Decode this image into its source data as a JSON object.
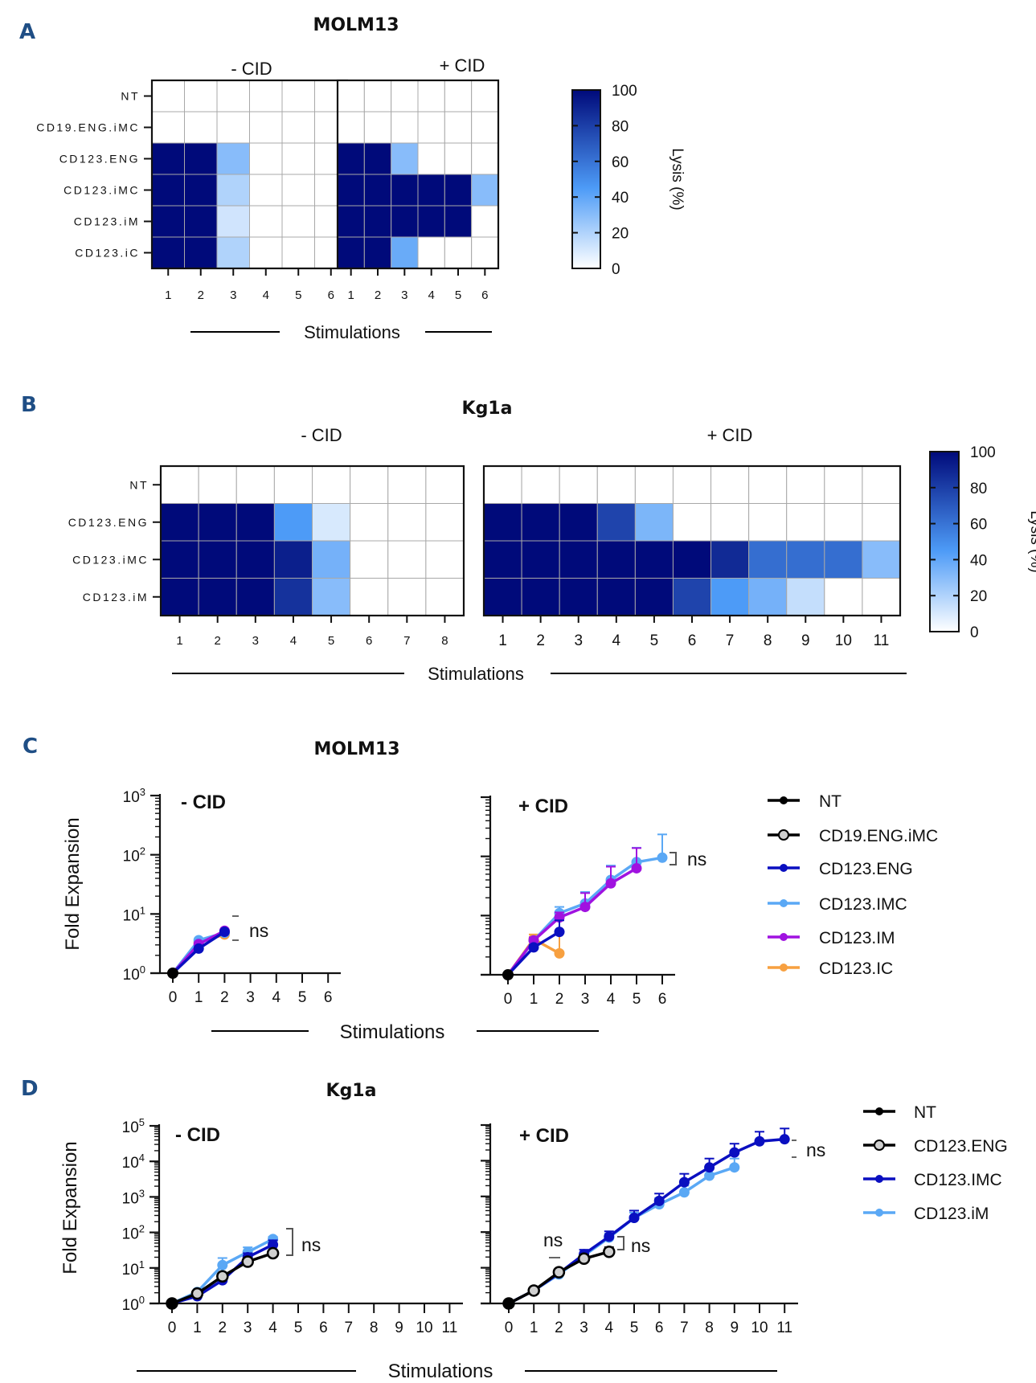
{
  "figure": {
    "panels": {
      "A": {
        "letter": "A",
        "title": "MOLM13"
      },
      "B": {
        "letter": "B",
        "title": "Kg1a"
      },
      "C": {
        "letter": "C",
        "title": "MOLM13"
      },
      "D": {
        "letter": "D",
        "title": "Kg1a"
      }
    },
    "stimulations_label": "Stimulations"
  },
  "chart_data": [
    {
      "id": "A",
      "type": "heatmap",
      "title": "MOLM13",
      "xlabel": "Stimulations",
      "colorbar": {
        "label": "Lysis (%)",
        "range": [
          0,
          100
        ],
        "ticks": [
          "0",
          "20",
          "40",
          "60",
          "80",
          "100"
        ],
        "low_color": "#ffffff",
        "mid_color": "#4d9bf7",
        "high_color": "#000a7a"
      },
      "rows": [
        "NT",
        "CD19.ENG.iMC",
        "CD123.ENG",
        "CD123.iMC",
        "CD123.iM",
        "CD123.iC"
      ],
      "subplots": [
        {
          "label": "- CID",
          "columns": [
            "1",
            "2",
            "3",
            "4",
            "5",
            "6"
          ],
          "values": [
            [
              0,
              0,
              0,
              0,
              0,
              0
            ],
            [
              0,
              0,
              0,
              0,
              0,
              0
            ],
            [
              100,
              100,
              30,
              0,
              0,
              0
            ],
            [
              100,
              100,
              20,
              0,
              0,
              0
            ],
            [
              100,
              100,
              12,
              0,
              0,
              0
            ],
            [
              100,
              100,
              20,
              0,
              0,
              0
            ]
          ]
        },
        {
          "label": "+ CID",
          "columns": [
            "1",
            "2",
            "3",
            "4",
            "5",
            "6"
          ],
          "values": [
            [
              0,
              0,
              0,
              0,
              0,
              0
            ],
            [
              0,
              0,
              0,
              0,
              0,
              0
            ],
            [
              100,
              100,
              30,
              0,
              0,
              0
            ],
            [
              100,
              100,
              100,
              100,
              100,
              30
            ],
            [
              100,
              100,
              100,
              100,
              100,
              0
            ],
            [
              100,
              100,
              38,
              0,
              0,
              0
            ]
          ]
        }
      ]
    },
    {
      "id": "B",
      "type": "heatmap",
      "title": "Kg1a",
      "xlabel": "Stimulations",
      "colorbar": {
        "label": "Lysis (%)",
        "range": [
          0,
          100
        ],
        "ticks": [
          "0",
          "20",
          "40",
          "60",
          "80",
          "100"
        ],
        "low_color": "#ffffff",
        "mid_color": "#4d9bf7",
        "high_color": "#000a7a"
      },
      "rows": [
        "NT",
        "CD123.ENG",
        "CD123.iMC",
        "CD123.iM"
      ],
      "subplots": [
        {
          "label": "- CID",
          "columns": [
            "1",
            "2",
            "3",
            "4",
            "5",
            "6",
            "7",
            "8"
          ],
          "values": [
            [
              0,
              0,
              0,
              0,
              0,
              0,
              0,
              0
            ],
            [
              100,
              100,
              100,
              45,
              10,
              0,
              0,
              0
            ],
            [
              100,
              100,
              100,
              92,
              35,
              0,
              0,
              0
            ],
            [
              100,
              100,
              100,
              85,
              30,
              0,
              0,
              0
            ]
          ]
        },
        {
          "label": "+ CID",
          "columns": [
            "1",
            "2",
            "3",
            "4",
            "5",
            "6",
            "7",
            "8",
            "9",
            "10",
            "11"
          ],
          "values": [
            [
              0,
              0,
              0,
              0,
              0,
              0,
              0,
              0,
              0,
              0,
              0
            ],
            [
              100,
              100,
              100,
              78,
              33,
              0,
              0,
              0,
              0,
              0,
              0
            ],
            [
              100,
              100,
              100,
              100,
              100,
              100,
              88,
              62,
              62,
              62,
              30
            ],
            [
              100,
              100,
              100,
              100,
              100,
              78,
              45,
              35,
              15,
              0,
              0
            ]
          ]
        }
      ]
    },
    {
      "id": "C",
      "type": "line",
      "title": "MOLM13",
      "ylabel": "Fold Expansion",
      "xlabel": "Stimulations",
      "yscale": "log",
      "ylim": [
        1,
        1000
      ],
      "yticks": [
        {
          "base": "10",
          "exp": "0"
        },
        {
          "base": "10",
          "exp": "1"
        },
        {
          "base": "10",
          "exp": "2"
        },
        {
          "base": "10",
          "exp": "3"
        }
      ],
      "legend": {
        "position": "right"
      },
      "series_styles": [
        {
          "name": "NT",
          "color": "#000000",
          "fill": "#000000"
        },
        {
          "name": "CD19.ENG.iMC",
          "color": "#000000",
          "fill": "#d0d0d0"
        },
        {
          "name": "CD123.ENG",
          "color": "#0a0fc0",
          "fill": "#0a0fc0"
        },
        {
          "name": "CD123.IMC",
          "color": "#5aa8f5",
          "fill": "#5aa8f5"
        },
        {
          "name": "CD123.IM",
          "color": "#a012e0",
          "fill": "#a012e0"
        },
        {
          "name": "CD123.IC",
          "color": "#f7a040",
          "fill": "#f7a040"
        }
      ],
      "subplots": [
        {
          "label": "- CID",
          "x_ticks": [
            "0",
            "1",
            "2",
            "3",
            "4",
            "5",
            "6"
          ],
          "annotation": "ns",
          "series": [
            {
              "name": "CD123.IC",
              "x": [
                0,
                1,
                2
              ],
              "y": [
                1,
                3.3,
                4.5
              ]
            },
            {
              "name": "CD123.IMC",
              "x": [
                0,
                1,
                2
              ],
              "y": [
                1,
                3.6,
                4.8
              ]
            },
            {
              "name": "CD123.IM",
              "x": [
                0,
                1,
                2
              ],
              "y": [
                1,
                3.1,
                5.2
              ]
            },
            {
              "name": "CD123.ENG",
              "x": [
                0,
                1,
                2
              ],
              "y": [
                1,
                2.6,
                5.0
              ]
            },
            {
              "name": "NT",
              "x": [
                0
              ],
              "y": [
                1
              ]
            }
          ]
        },
        {
          "label": "+ CID",
          "x_ticks": [
            "0",
            "1",
            "2",
            "3",
            "4",
            "5",
            "6"
          ],
          "annotation": "ns",
          "series": [
            {
              "name": "CD123.IC",
              "x": [
                0,
                1,
                2
              ],
              "y": [
                1,
                4.0,
                2.3
              ],
              "err": [
                0,
                0.8,
                3.0
              ]
            },
            {
              "name": "CD123.IMC",
              "x": [
                0,
                1,
                2,
                3,
                4,
                5,
                6
              ],
              "y": [
                1,
                3.8,
                11,
                16,
                40,
                80,
                95
              ],
              "err": [
                0,
                0.5,
                3,
                9,
                30,
                60,
                140
              ]
            },
            {
              "name": "CD123.IM",
              "x": [
                0,
                1,
                2,
                3,
                4,
                5
              ],
              "y": [
                1,
                3.8,
                9.3,
                14,
                35,
                63
              ],
              "err": [
                0,
                0.5,
                2,
                10,
                32,
                75
              ]
            },
            {
              "name": "CD123.ENG",
              "x": [
                0,
                1,
                2
              ],
              "y": [
                1,
                2.9,
                5.3
              ],
              "err": [
                0,
                0.3,
                3
              ]
            },
            {
              "name": "NT",
              "x": [
                0
              ],
              "y": [
                1
              ]
            }
          ]
        }
      ]
    },
    {
      "id": "D",
      "type": "line",
      "title": "Kg1a",
      "ylabel": "Fold Expansion",
      "xlabel": "Stimulations",
      "yscale": "log",
      "ylim": [
        1,
        100000
      ],
      "yticks": [
        {
          "base": "10",
          "exp": "0"
        },
        {
          "base": "10",
          "exp": "1"
        },
        {
          "base": "10",
          "exp": "2"
        },
        {
          "base": "10",
          "exp": "3"
        },
        {
          "base": "10",
          "exp": "4"
        },
        {
          "base": "10",
          "exp": "5"
        }
      ],
      "legend": {
        "position": "right"
      },
      "series_styles": [
        {
          "name": "NT",
          "color": "#000000",
          "fill": "#000000"
        },
        {
          "name": "CD123.ENG",
          "color": "#000000",
          "fill": "#d0d0d0"
        },
        {
          "name": "CD123.IMC",
          "color": "#0a0fc0",
          "fill": "#0a0fc0"
        },
        {
          "name": "CD123.iM",
          "color": "#5aa8f5",
          "fill": "#5aa8f5"
        }
      ],
      "subplots": [
        {
          "label": "- CID",
          "x_ticks": [
            "0",
            "1",
            "2",
            "3",
            "4",
            "5",
            "6",
            "7",
            "8",
            "9",
            "10",
            "11"
          ],
          "annotations": [
            "ns"
          ],
          "series": [
            {
              "name": "CD123.iM",
              "x": [
                0,
                1,
                2,
                3,
                4
              ],
              "y": [
                1,
                2.1,
                12,
                28,
                65
              ],
              "err": [
                0,
                0.2,
                7,
                10,
                10
              ]
            },
            {
              "name": "CD123.IMC",
              "x": [
                0,
                1,
                2,
                3,
                4
              ],
              "y": [
                1,
                1.6,
                4.5,
                20,
                45
              ],
              "err": [
                0,
                0.2,
                1,
                6,
                15
              ]
            },
            {
              "name": "CD123.ENG",
              "x": [
                0,
                1,
                2,
                3,
                4
              ],
              "y": [
                1,
                1.9,
                5.8,
                15,
                26
              ],
              "err": [
                0,
                0,
                0,
                0,
                0
              ]
            },
            {
              "name": "NT",
              "x": [
                0
              ],
              "y": [
                1
              ]
            }
          ]
        },
        {
          "label": "+ CID",
          "x_ticks": [
            "0",
            "1",
            "2",
            "3",
            "4",
            "5",
            "6",
            "7",
            "8",
            "9",
            "10",
            "11"
          ],
          "annotations": [
            "ns",
            "ns",
            "ns"
          ],
          "series": [
            {
              "name": "CD123.iM",
              "x": [
                0,
                1,
                2,
                3,
                4,
                5,
                6,
                7,
                8,
                9
              ],
              "y": [
                1,
                2.3,
                6.5,
                22,
                70,
                250,
                600,
                1300,
                3800,
                6500
              ],
              "err": [
                0,
                0,
                1,
                5,
                20,
                100,
                300,
                700,
                2000,
                5000
              ]
            },
            {
              "name": "CD123.IMC",
              "x": [
                0,
                1,
                2,
                3,
                4,
                5,
                6,
                7,
                8,
                9,
                10,
                11
              ],
              "y": [
                1,
                2.3,
                7,
                24,
                75,
                250,
                750,
                2500,
                6500,
                17000,
                35000,
                40000
              ],
              "err": [
                0,
                0,
                1,
                8,
                30,
                150,
                450,
                1800,
                5000,
                13000,
                30000,
                40000
              ]
            },
            {
              "name": "CD123.ENG",
              "x": [
                0,
                1,
                2,
                3,
                4
              ],
              "y": [
                1,
                2.3,
                7.5,
                18,
                28
              ],
              "err": [
                0,
                0,
                1,
                3,
                10
              ]
            },
            {
              "name": "NT",
              "x": [
                0
              ],
              "y": [
                1
              ]
            }
          ]
        }
      ]
    }
  ]
}
